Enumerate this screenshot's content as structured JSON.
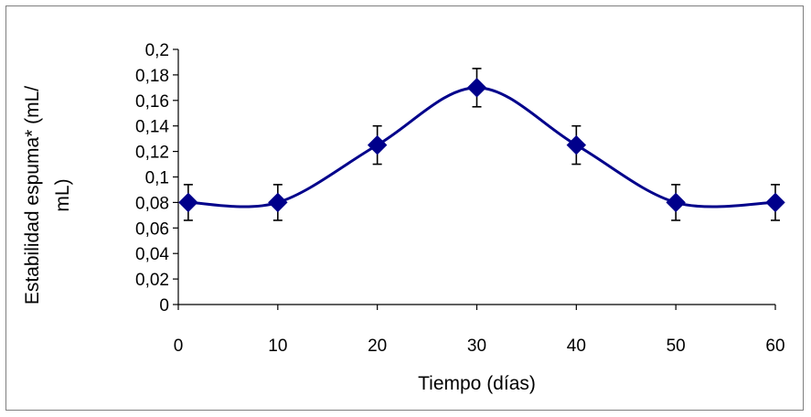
{
  "chart_data": {
    "type": "line",
    "x": [
      1,
      10,
      20,
      30,
      40,
      50,
      60
    ],
    "series": [
      {
        "values": [
          0.08,
          0.08,
          0.125,
          0.17,
          0.125,
          0.08,
          0.08
        ],
        "error": [
          0.014,
          0.014,
          0.015,
          0.015,
          0.015,
          0.014,
          0.014
        ],
        "color": "#00008b",
        "marker": "diamond",
        "smooth": true
      }
    ],
    "xlabel": "Tiempo (días)",
    "ylabel_lines": [
      "Estabilidad espuma* (mL/",
      "mL)"
    ],
    "xlim": [
      0,
      60
    ],
    "ylim": [
      0,
      0.2
    ],
    "xticks": [
      0,
      10,
      20,
      30,
      40,
      50,
      60
    ],
    "xtick_labels": [
      "0",
      "10",
      "20",
      "30",
      "40",
      "50",
      "60"
    ],
    "yticks": [
      0,
      0.02,
      0.04,
      0.06,
      0.08,
      0.1,
      0.12,
      0.14,
      0.16,
      0.18,
      0.2
    ],
    "ytick_labels": [
      "0",
      "0,02",
      "0,04",
      "0,06",
      "0,08",
      "0,1",
      "0,12",
      "0,14",
      "0,16",
      "0,18",
      "0,2"
    ],
    "grid": false,
    "legend": "none"
  }
}
